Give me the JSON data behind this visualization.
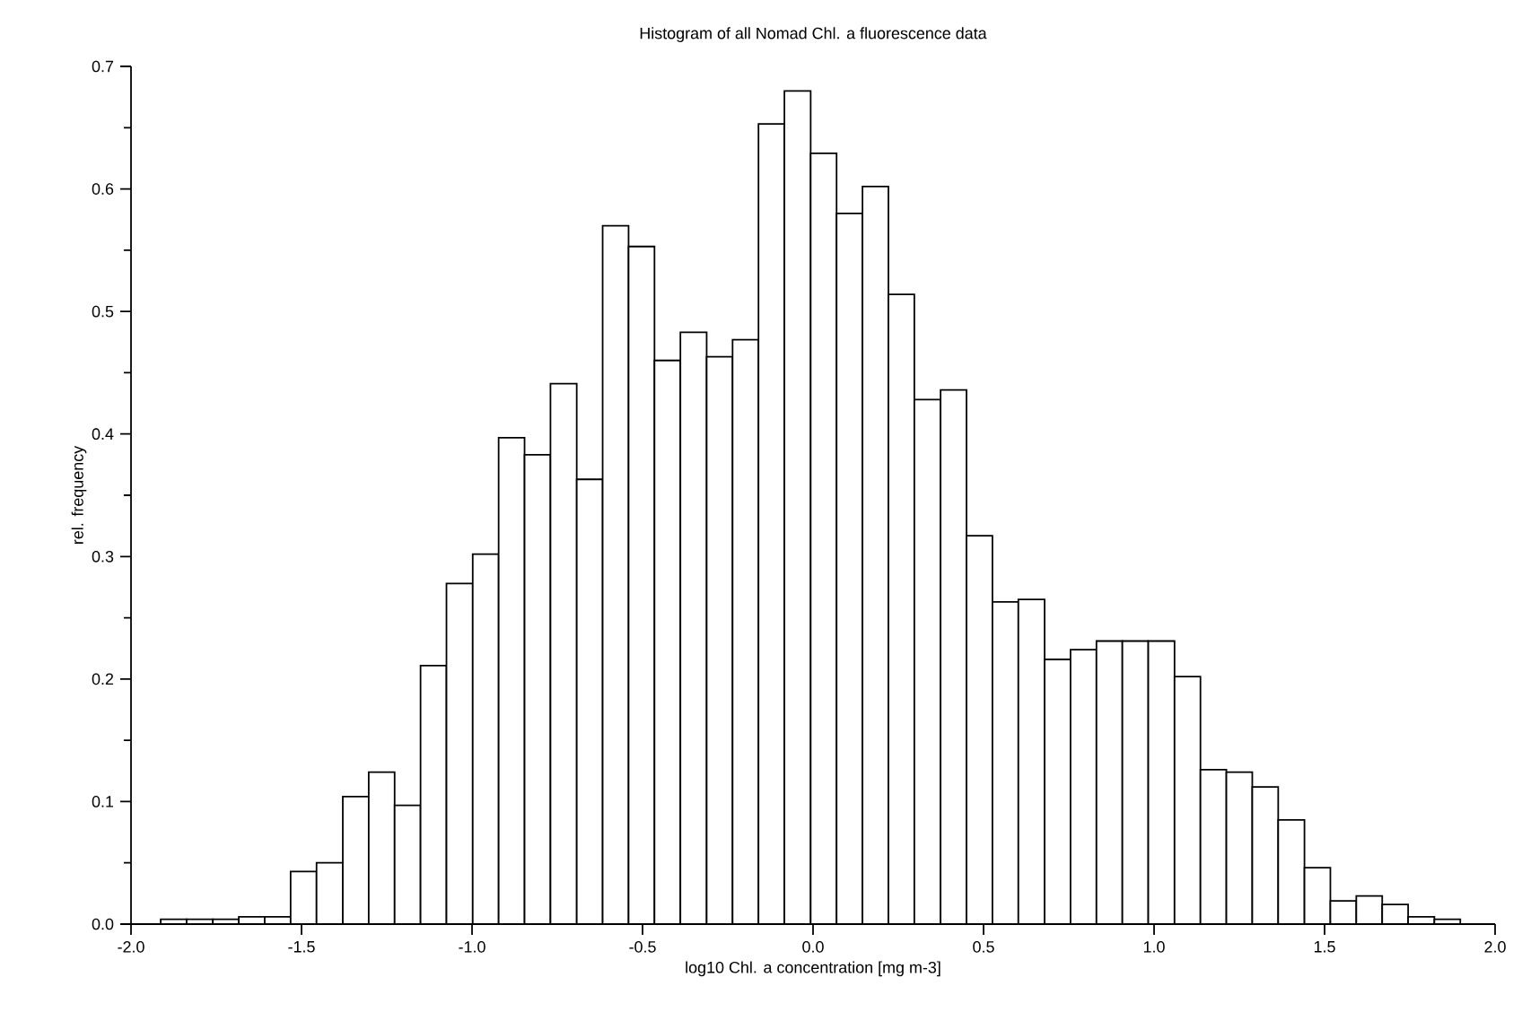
{
  "chart_data": {
    "type": "histogram",
    "title": "Histogram of all Nomad Chl. a fluorescence data",
    "xlabel": "log10 Chl. a concentration [mg m-3]",
    "ylabel": "rel. frequency",
    "color": "#ffffff",
    "bins": [
      -1.913,
      -1.837,
      -1.76,
      -1.684,
      -1.608,
      -1.532,
      -1.456,
      -1.379,
      -1.303,
      -1.227,
      -1.151,
      -1.075,
      -0.998,
      -0.922,
      -0.846,
      -0.77,
      -0.693,
      -0.617,
      -0.541,
      -0.465,
      -0.389,
      -0.312,
      -0.236,
      -0.16,
      -0.084,
      -0.007,
      0.069,
      0.145,
      0.221,
      0.297,
      0.374,
      0.45,
      0.526,
      0.602,
      0.679,
      0.755,
      0.831,
      0.907,
      0.983,
      1.06,
      1.136,
      1.212,
      1.288,
      1.364,
      1.441,
      1.517,
      1.593,
      1.669,
      1.745,
      1.822,
      1.898
    ],
    "values": [
      0.004,
      0.004,
      0.004,
      0.006,
      0.006,
      0.043,
      0.05,
      0.104,
      0.124,
      0.097,
      0.211,
      0.278,
      0.302,
      0.397,
      0.383,
      0.441,
      0.363,
      0.57,
      0.553,
      0.46,
      0.483,
      0.463,
      0.477,
      0.653,
      0.68,
      0.629,
      0.58,
      0.602,
      0.514,
      0.428,
      0.436,
      0.317,
      0.263,
      0.265,
      0.216,
      0.224,
      0.231,
      0.231,
      0.231,
      0.202,
      0.126,
      0.124,
      0.112,
      0.085,
      0.046,
      0.019,
      0.023,
      0.016,
      0.006,
      0.004
    ],
    "xlim": [
      -2,
      2
    ],
    "ylim": [
      0,
      0.7
    ],
    "xticks": [
      {
        "value": -2,
        "label": "-2.0"
      },
      {
        "value": -1.5,
        "label": "-1.5"
      },
      {
        "value": -1,
        "label": "-1.0"
      },
      {
        "value": -0.5,
        "label": "-0.5"
      },
      {
        "value": 0,
        "label": "0.0"
      },
      {
        "value": 0.5,
        "label": "0.5"
      },
      {
        "value": 1,
        "label": "1.0"
      },
      {
        "value": 1.5,
        "label": "1.5"
      },
      {
        "value": 2,
        "label": "2.0"
      }
    ],
    "yticks": [
      {
        "value": 0,
        "label": "0.0"
      },
      {
        "value": 0.1,
        "label": "0.1"
      },
      {
        "value": 0.2,
        "label": "0.2"
      },
      {
        "value": 0.3,
        "label": "0.3"
      },
      {
        "value": 0.4,
        "label": "0.4"
      },
      {
        "value": 0.5,
        "label": "0.5"
      },
      {
        "value": 0.6,
        "label": "0.6"
      },
      {
        "value": 0.7,
        "label": "0.7"
      }
    ]
  }
}
